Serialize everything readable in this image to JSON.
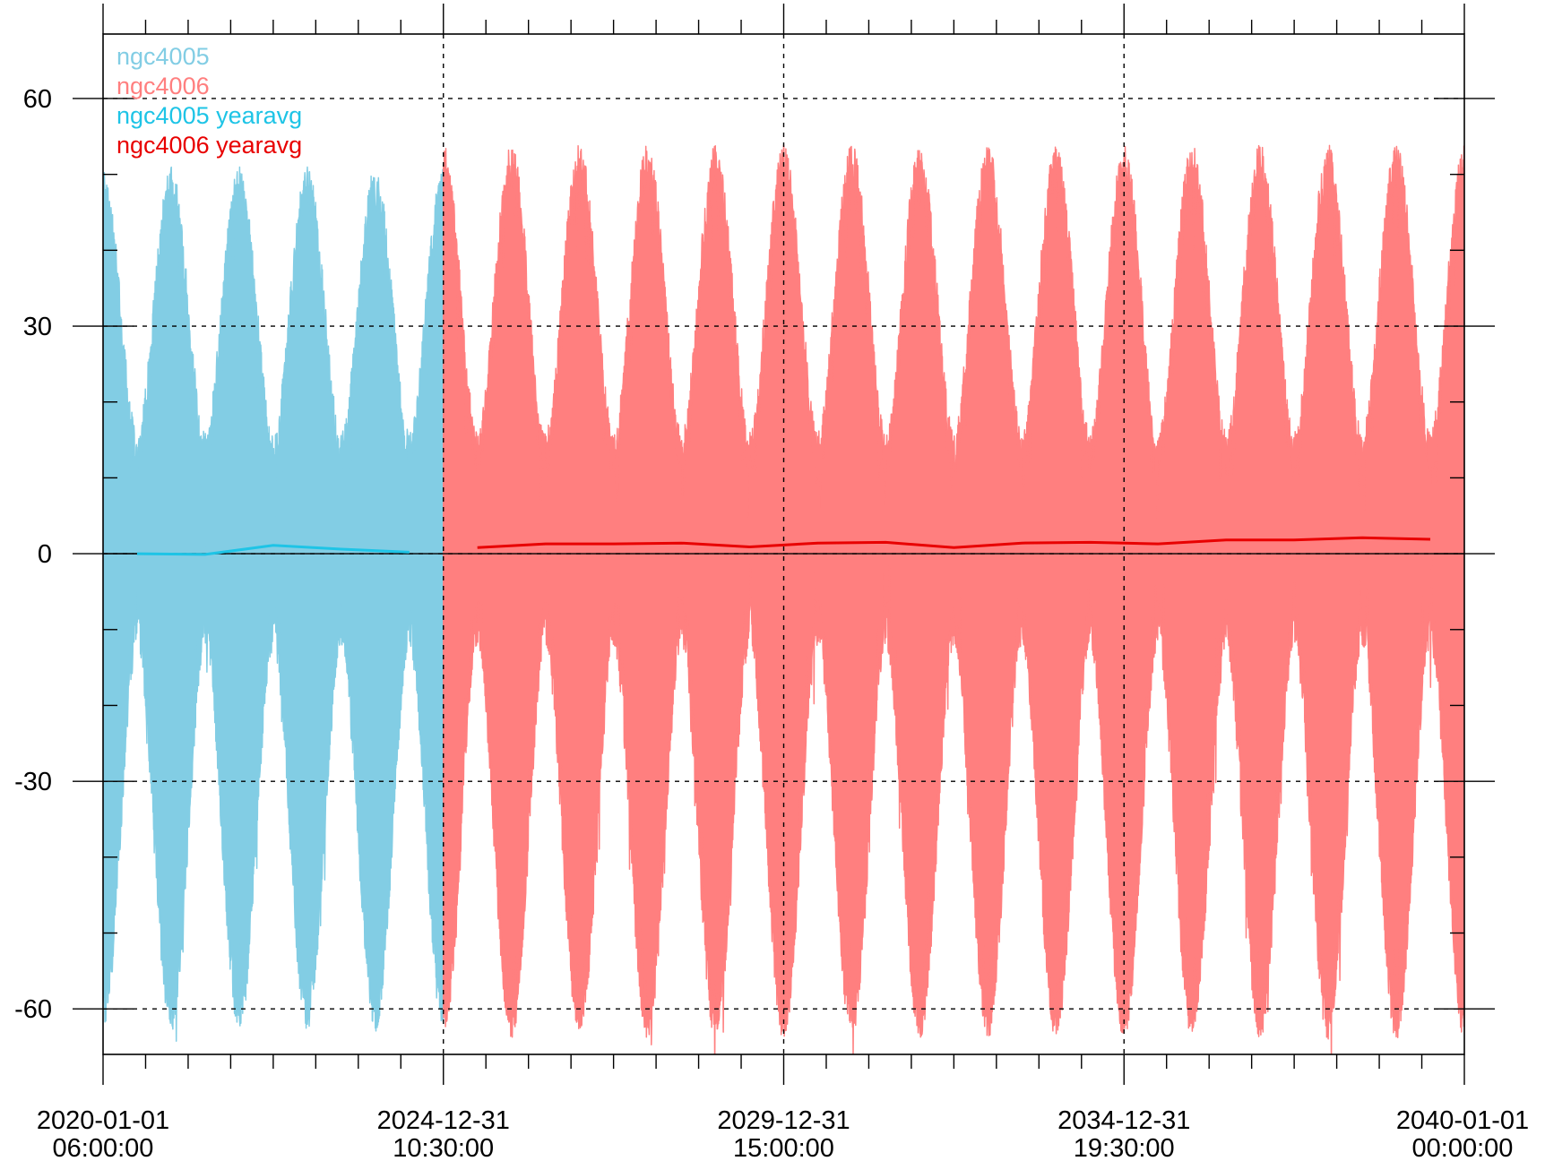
{
  "chart_data": {
    "type": "line",
    "title": "",
    "xlabel": "",
    "ylabel": "",
    "ylim": [
      -66,
      68.5
    ],
    "yticks_major": [
      -60,
      -30,
      0,
      30,
      60
    ],
    "yticks_minor_step": 10,
    "xlim": [
      "2020-01-01 06:00:00",
      "2040-01-01 00:00:00"
    ],
    "xticks_major": [
      {
        "line1": "2020-01-01",
        "line2": "06:00:00"
      },
      {
        "line1": "2024-12-31",
        "line2": "10:30:00"
      },
      {
        "line1": "2029-12-31",
        "line2": "15:00:00"
      },
      {
        "line1": "2034-12-31",
        "line2": "19:30:00"
      },
      {
        "line1": "2040-01-01",
        "line2": "00:00:00"
      }
    ],
    "xticks_minor_per_interval": 8,
    "grid": "dashed at major ticks",
    "legend_position": "top-left",
    "series": [
      {
        "name": "ngc4005",
        "color": "#82cde4",
        "kind": "filled-envelope",
        "x_range_years": [
          2020.0,
          2025.0
        ],
        "approx_upper_envelope_peak": 51,
        "approx_lower_envelope_trough": -63,
        "seasonal_cycle": "annual, two swings per year"
      },
      {
        "name": "ngc4006",
        "color": "#ff7f7f",
        "kind": "filled-envelope",
        "x_range_years": [
          2025.0,
          2040.0
        ],
        "approx_upper_envelope_peak": 54,
        "approx_lower_envelope_trough": -64,
        "seasonal_cycle": "annual, two swings per year"
      },
      {
        "name": "ngc4005 yearavg",
        "color": "#1ec4e6",
        "x": [
          2020.5,
          2021.5,
          2022.5,
          2023.5,
          2024.5
        ],
        "values": [
          0.0,
          -0.1,
          1.1,
          0.6,
          0.2
        ]
      },
      {
        "name": "ngc4006 yearavg",
        "color": "#e80000",
        "x": [
          2025.5,
          2026.5,
          2027.5,
          2028.5,
          2029.5,
          2030.5,
          2031.5,
          2032.5,
          2033.5,
          2034.5,
          2035.5,
          2036.5,
          2037.5,
          2038.5,
          2039.5
        ],
        "values": [
          0.8,
          1.3,
          1.3,
          1.4,
          0.9,
          1.4,
          1.5,
          0.8,
          1.4,
          1.5,
          1.3,
          1.8,
          1.8,
          2.1,
          1.9
        ]
      }
    ]
  }
}
